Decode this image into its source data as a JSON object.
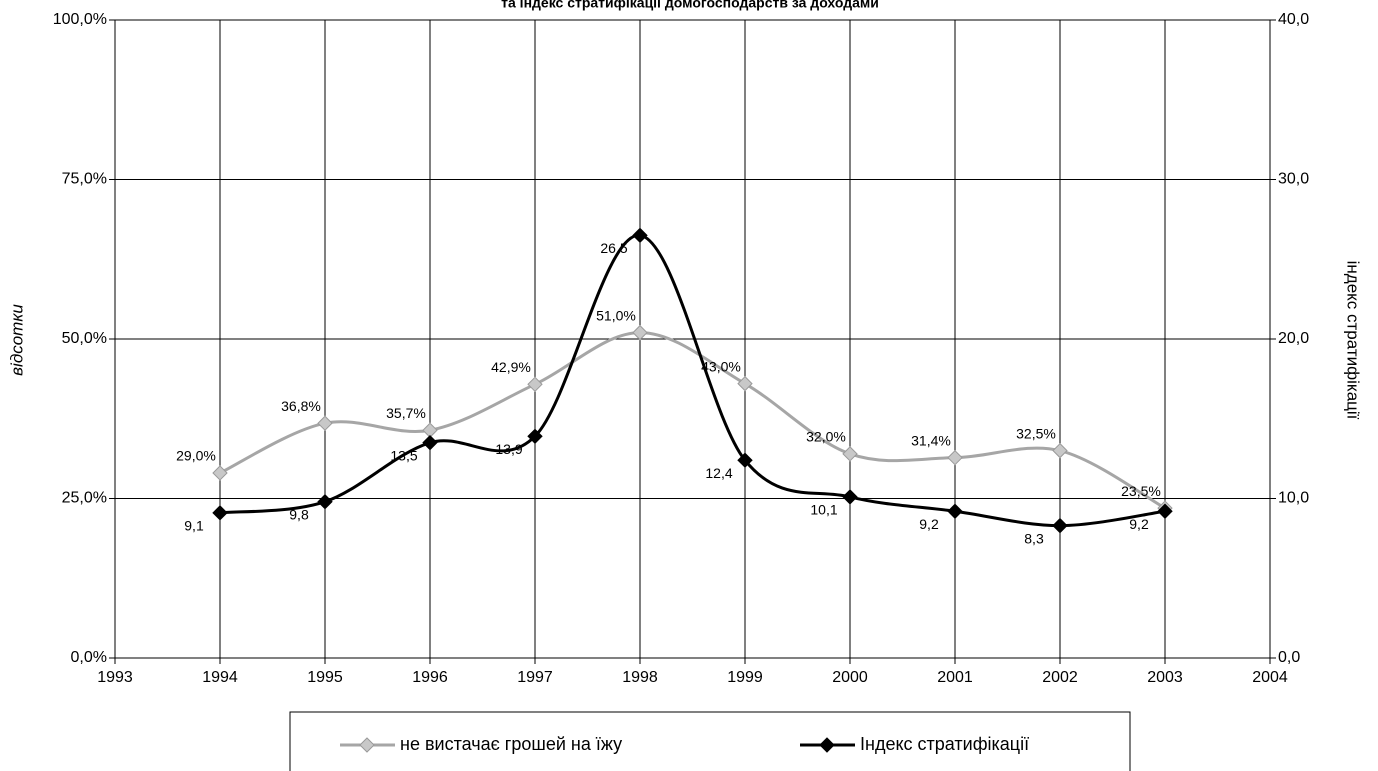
{
  "chart_data": {
    "type": "line",
    "title": "та індекс стратифікації домогосподарств за доходами",
    "ylabel": "відсотки",
    "y2label": "індекс стратифікації",
    "x": [
      1994,
      1995,
      1996,
      1997,
      1998,
      1999,
      2000,
      2001,
      2002,
      2003
    ],
    "xlim": [
      1993,
      2004
    ],
    "xticks": [
      1993,
      1994,
      1995,
      1996,
      1997,
      1998,
      1999,
      2000,
      2001,
      2002,
      2003,
      2004
    ],
    "ylim": [
      0,
      100
    ],
    "yticks": [
      {
        "value": 0,
        "label": "0,0%"
      },
      {
        "value": 25,
        "label": "25,0%"
      },
      {
        "value": 50,
        "label": "50,0%"
      },
      {
        "value": 75,
        "label": "75,0%"
      },
      {
        "value": 100,
        "label": "100,0%"
      }
    ],
    "y2lim": [
      0,
      40
    ],
    "y2ticks": [
      {
        "value": 0,
        "label": "0,0"
      },
      {
        "value": 10,
        "label": "10,0"
      },
      {
        "value": 20,
        "label": "20,0"
      },
      {
        "value": 30,
        "label": "30,0"
      },
      {
        "value": 40,
        "label": "40,0"
      }
    ],
    "grid": true,
    "series": [
      {
        "name": "не вистачає грошей на їжу",
        "color": "#a6a6a6",
        "values": [
          29.0,
          36.8,
          35.7,
          42.9,
          51.0,
          43.0,
          32.0,
          31.4,
          32.5,
          23.5
        ],
        "value_labels": [
          "29,0%",
          "36,8%",
          "35,7%",
          "42,9%",
          "51,0%",
          "43,0%",
          "32,0%",
          "31,4%",
          "32,5%",
          "23,5%"
        ]
      },
      {
        "name": "Індекс стратифікації",
        "color": "#000000",
        "axis": "y2",
        "values": [
          9.1,
          9.8,
          13.5,
          13.9,
          26.5,
          12.4,
          10.1,
          9.2,
          8.3,
          9.2
        ],
        "value_labels": [
          "9,1",
          "9,8",
          "13,5",
          "13,9",
          "26,5",
          "12,4",
          "10,1",
          "9,2",
          "8,3",
          "9,2"
        ]
      }
    ]
  }
}
